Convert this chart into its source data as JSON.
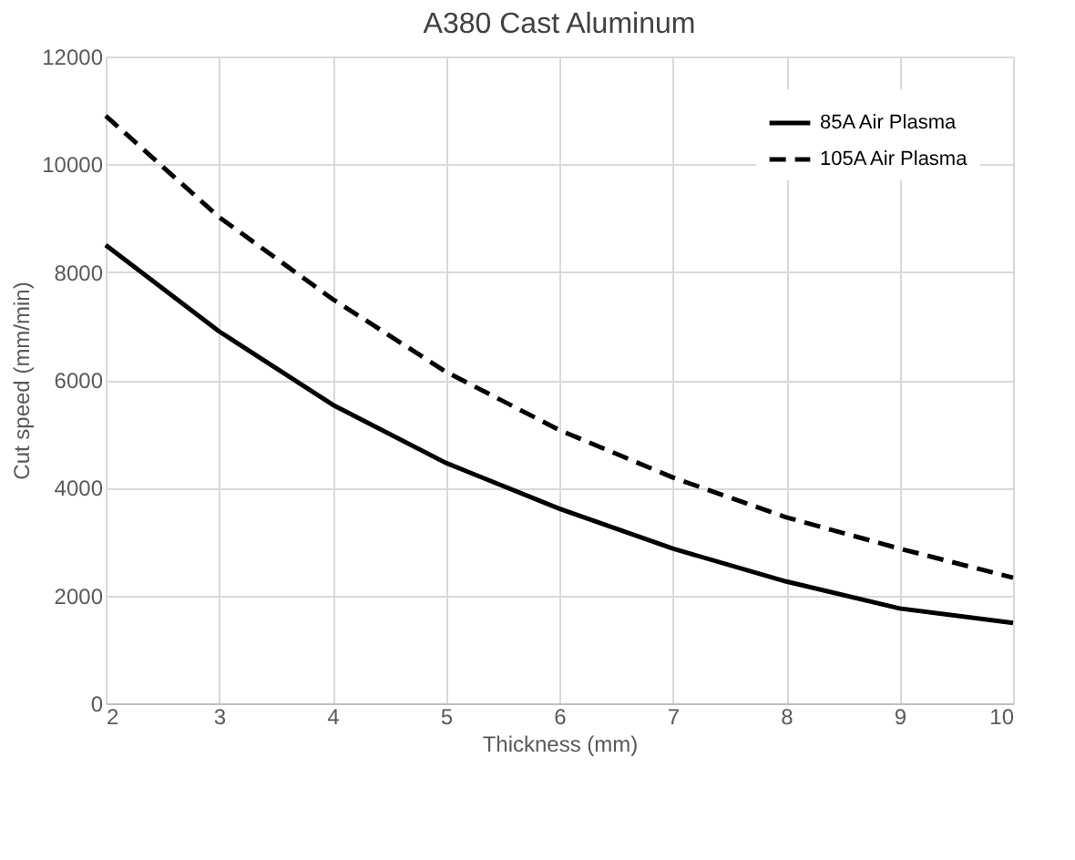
{
  "chart_data": {
    "type": "line",
    "title": "A380 Cast Aluminum",
    "xlabel": "Thickness (mm)",
    "ylabel": "Cut speed (mm/min)",
    "x": [
      2,
      3,
      4,
      5,
      6,
      7,
      8,
      9,
      10
    ],
    "series": [
      {
        "name": "85A Air Plasma",
        "color": "#000000",
        "line_style": "solid",
        "values": [
          8500,
          6900,
          5540,
          4460,
          3610,
          2870,
          2260,
          1760,
          1490
        ]
      },
      {
        "name": "105A Air Plasma",
        "color": "#000000",
        "line_style": "dashed",
        "values": [
          10900,
          9020,
          7500,
          6150,
          5070,
          4190,
          3450,
          2870,
          2330
        ]
      }
    ],
    "xlim": [
      2,
      10
    ],
    "xticks": [
      2,
      3,
      4,
      5,
      6,
      7,
      8,
      9,
      10
    ],
    "ylim": [
      0,
      12000
    ],
    "yticks": [
      0,
      2000,
      4000,
      6000,
      8000,
      10000,
      12000
    ],
    "grid": true,
    "legend": "top right",
    "marker": "none"
  }
}
